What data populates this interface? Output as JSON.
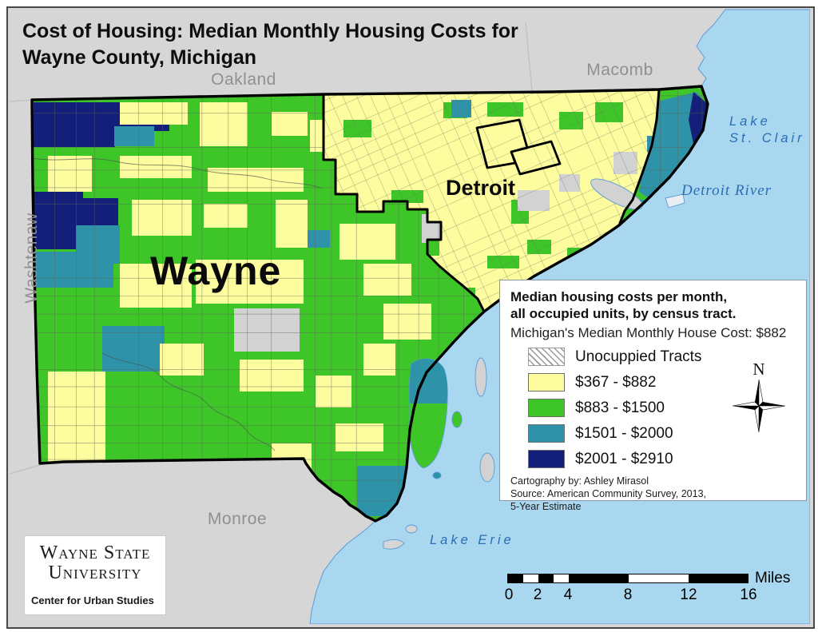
{
  "title": {
    "line1": "Cost of Housing: Median Monthly Housing Costs for",
    "line2": "Wayne County, Michigan"
  },
  "map_labels": {
    "counties": {
      "oakland": "Oakland",
      "macomb": "Macomb",
      "washtenaw": "Washtenaw",
      "monroe": "Monroe"
    },
    "places": {
      "wayne": "Wayne",
      "detroit": "Detroit"
    },
    "water": {
      "lake_st_clair_line1": "Lake",
      "lake_st_clair_line2": "St. Clair",
      "detroit_river": "Detroit River",
      "lake_erie": "Lake Erie"
    }
  },
  "legend": {
    "heading_line1": "Median housing costs per month,",
    "heading_line2": "all occupied units, by census tract.",
    "note": "Michigan's Median Monthly House Cost: $882",
    "items": [
      {
        "label": "Unocuppied Tracts",
        "swatch": "hatched"
      },
      {
        "label": "$367 - $882",
        "swatch": "class1"
      },
      {
        "label": "$883 - $1500",
        "swatch": "class2"
      },
      {
        "label": "$1501 - $2000",
        "swatch": "class3"
      },
      {
        "label": "$2001 - $2910",
        "swatch": "class4"
      }
    ],
    "credits": [
      "Cartography by: Ashley Mirasol",
      "Source: American Community Survey, 2013,",
      "5-Year Estimate"
    ]
  },
  "compass": {
    "north_label": "N"
  },
  "scale_bar": {
    "ticks": [
      "0",
      "2",
      "4",
      "8",
      "12",
      "16"
    ],
    "unit_label": "Miles"
  },
  "logo": {
    "org_line1": "Wayne State",
    "org_line2": "University",
    "dept": "Center for Urban Studies"
  },
  "colors": {
    "class1": "#fdfc9e",
    "class2": "#3ec629",
    "class3": "#2e93a8",
    "class4": "#131f78",
    "unoccupied": "#d2d2d2",
    "water": "#a9d7ef",
    "water_line": "#5b9bd5",
    "land": "#d6d6d6",
    "county_label": "#909090",
    "water_label": "#2a6db5"
  }
}
